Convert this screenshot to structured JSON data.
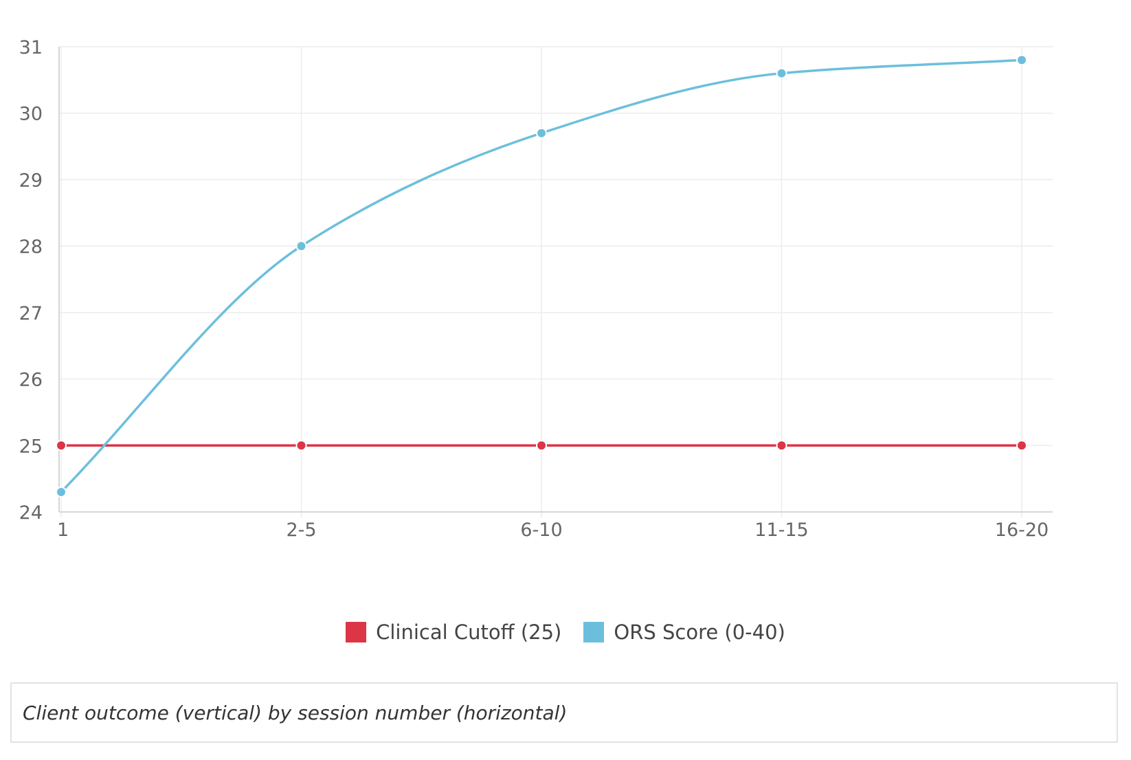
{
  "chart_data": {
    "type": "line",
    "categories": [
      "1",
      "2-5",
      "6-10",
      "11-15",
      "16-20"
    ],
    "series": [
      {
        "name": "Clinical Cutoff (25)",
        "color": "#dc3545",
        "values": [
          25,
          25,
          25,
          25,
          25
        ]
      },
      {
        "name": "ORS Score (0-40)",
        "color": "#6cbfdc",
        "values": [
          24.3,
          28.0,
          29.7,
          30.6,
          30.8
        ]
      }
    ],
    "yticks": [
      24,
      25,
      26,
      27,
      28,
      29,
      30,
      31
    ],
    "ylim": [
      24,
      31
    ],
    "grid": true,
    "legend_position": "bottom-center",
    "smooth_curve": true
  },
  "caption": "Client outcome (vertical) by session number (horizontal)"
}
